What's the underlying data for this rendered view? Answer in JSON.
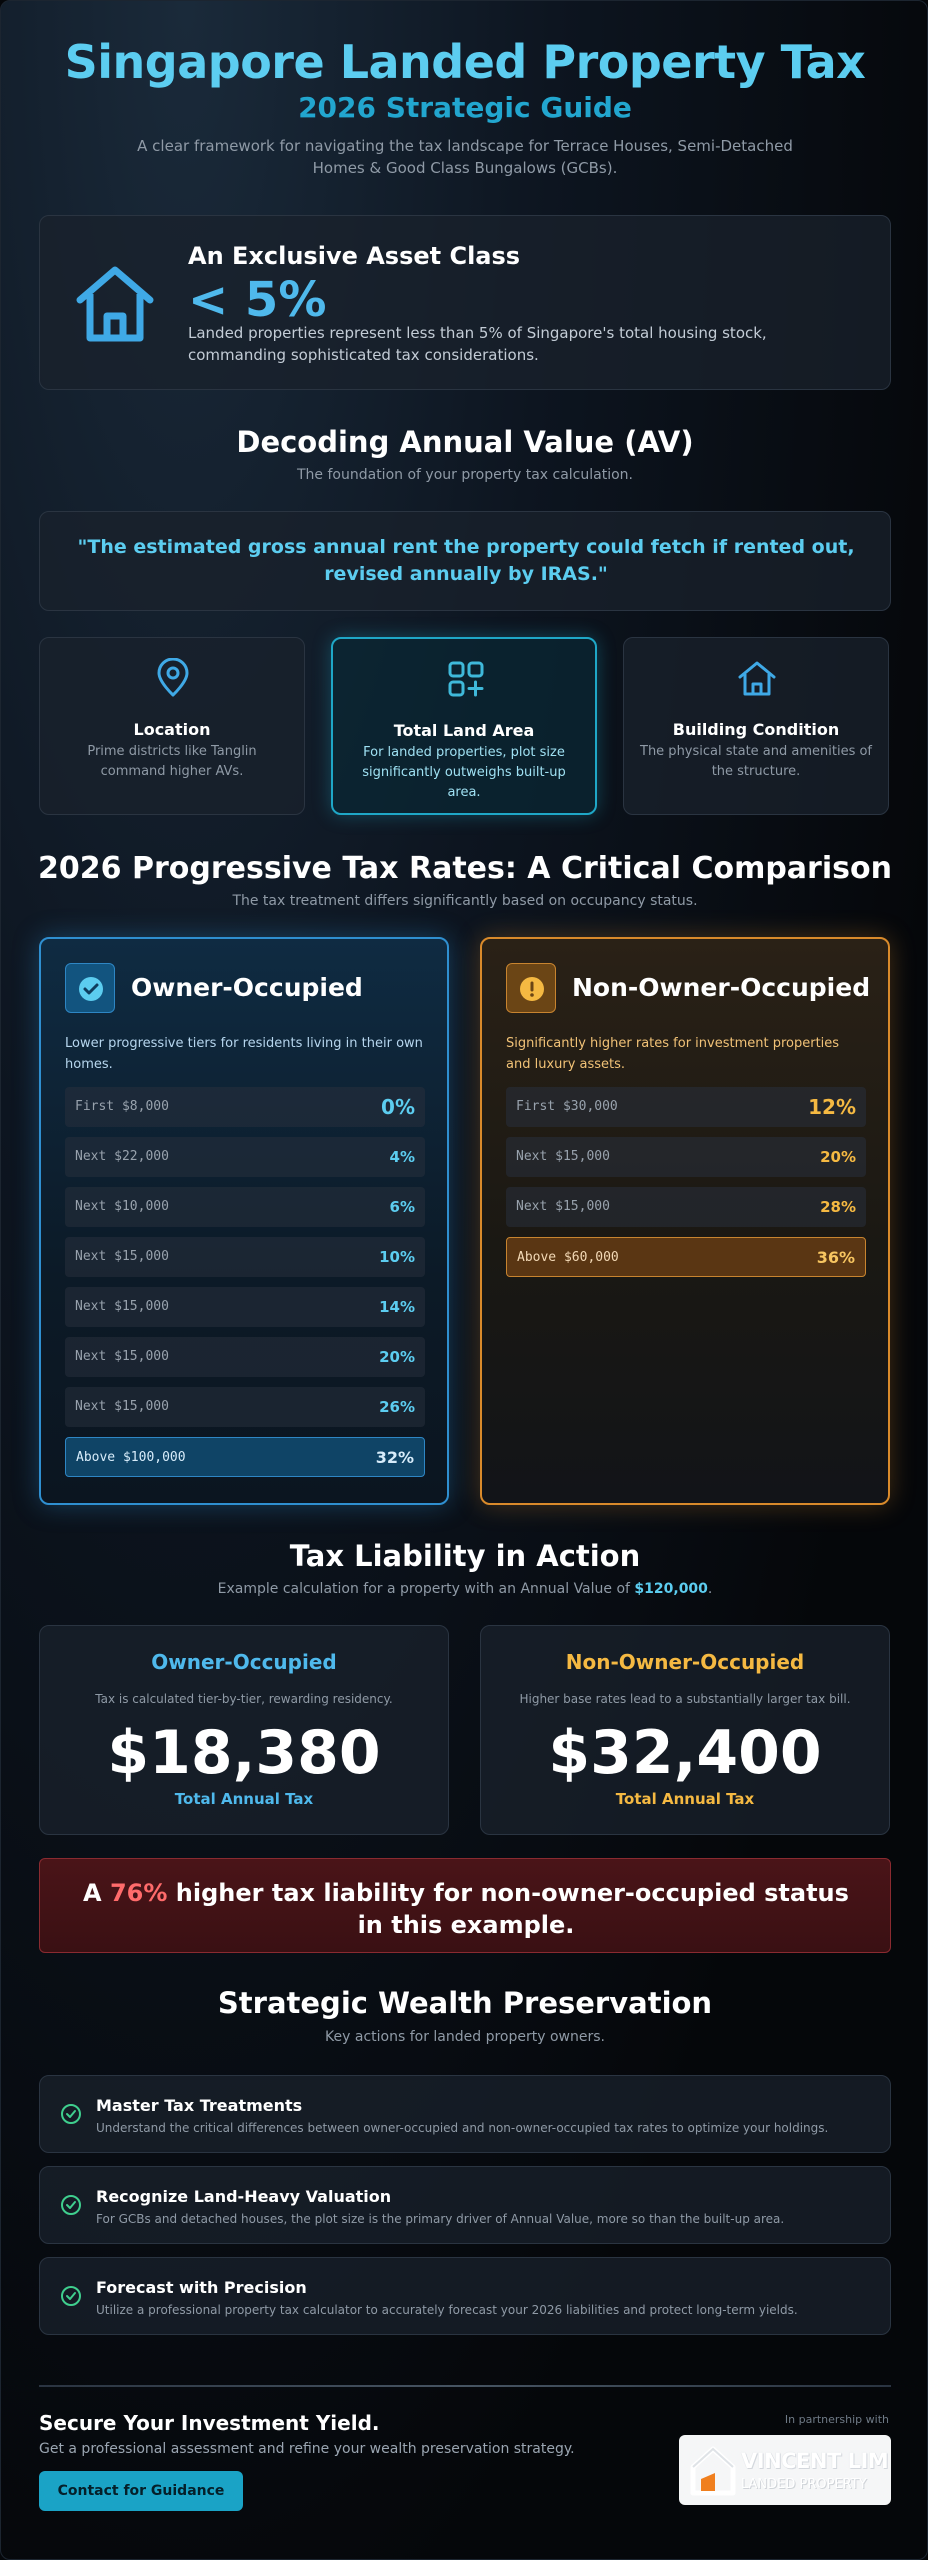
{
  "header": {
    "title": "Singapore Landed Property Tax",
    "subtitle": "2026 Strategic Guide",
    "intro": "A clear framework for navigating the tax landscape for Terrace Houses, Semi-Detached Homes & Good Class Bungalows (GCBs)."
  },
  "asset": {
    "heading": "An Exclusive Asset Class",
    "stat": "< 5%",
    "description": "Landed properties represent less than 5% of Singapore's total housing stock, commanding sophisticated tax considerations.",
    "icon": "house-icon"
  },
  "av": {
    "title": "Decoding Annual Value (AV)",
    "subtitle": "The foundation of your property tax calculation.",
    "quote": "\"The estimated gross annual rent the property could fetch if rented out, revised annually by IRAS.\"",
    "factors": [
      {
        "title": "Location",
        "desc": "Prime districts like Tanglin command higher AVs.",
        "icon": "map-pin-icon"
      },
      {
        "title": "Total Land Area",
        "desc": "For landed properties, plot size significantly outweighs built-up area.",
        "icon": "grid-plus-icon"
      },
      {
        "title": "Building Condition",
        "desc": "The physical state and amenities of the structure.",
        "icon": "house-icon"
      }
    ]
  },
  "rates": {
    "title": "2026 Progressive Tax Rates: A Critical Comparison",
    "subtitle": "The tax treatment differs significantly based on occupancy status.",
    "owner": {
      "title": "Owner-Occupied",
      "desc": "Lower progressive tiers for residents living in their own homes.",
      "rows": [
        {
          "label": "First $8,000",
          "value": "0%"
        },
        {
          "label": "Next $22,000",
          "value": "4%"
        },
        {
          "label": "Next $10,000",
          "value": "6%"
        },
        {
          "label": "Next $15,000",
          "value": "10%"
        },
        {
          "label": "Next $15,000",
          "value": "14%"
        },
        {
          "label": "Next $15,000",
          "value": "20%"
        },
        {
          "label": "Next $15,000",
          "value": "26%"
        },
        {
          "label": "Above $100,000",
          "value": "32%"
        }
      ]
    },
    "non_owner": {
      "title": "Non-Owner-Occupied",
      "desc": "Significantly higher rates for investment properties and luxury assets.",
      "rows": [
        {
          "label": "First $30,000",
          "value": "12%"
        },
        {
          "label": "Next $15,000",
          "value": "20%"
        },
        {
          "label": "Next $15,000",
          "value": "28%"
        },
        {
          "label": "Above $60,000",
          "value": "36%"
        }
      ]
    }
  },
  "liability": {
    "title": "Tax Liability in Action",
    "subtitle_prefix": "Example calculation for a property with an Annual Value of ",
    "subtitle_value": "$120,000",
    "subtitle_suffix": ".",
    "owner": {
      "title": "Owner-Occupied",
      "desc": "Tax is calculated tier-by-tier, rewarding residency.",
      "amount": "$18,380",
      "label": "Total Annual Tax"
    },
    "non_owner": {
      "title": "Non-Owner-Occupied",
      "desc": "Higher base rates lead to a substantially larger tax bill.",
      "amount": "$32,400",
      "label": "Total Annual Tax"
    },
    "warning_prefix": "A ",
    "warning_pct": "76%",
    "warning_suffix": " higher tax liability for non-owner-occupied status in this example."
  },
  "strategy": {
    "title": "Strategic Wealth Preservation",
    "subtitle": "Key actions for landed property owners.",
    "items": [
      {
        "title": "Master Tax Treatments",
        "desc": "Understand the critical differences between owner-occupied and non-owner-occupied tax rates to optimize your holdings."
      },
      {
        "title": "Recognize Land-Heavy Valuation",
        "desc": "For GCBs and detached houses, the plot size is the primary driver of Annual Value, more so than the built-up area."
      },
      {
        "title": "Forecast with Precision",
        "desc": "Utilize a professional property tax calculator to accurately forecast your 2026 liabilities and protect long-term yields."
      }
    ]
  },
  "footer": {
    "title": "Secure Your Investment Yield.",
    "subtitle": "Get a professional assessment and refine your wealth preservation strategy.",
    "cta": "Contact for Guidance",
    "partner_label": "In partnership with",
    "logo_name": "VINCENT LIM",
    "logo_tag": "LANDED PROPERTY"
  },
  "colors": {
    "accent_cyan": "#5ccdf0",
    "owner_blue": "#4fb9ec",
    "non_owner_amber": "#f5b942",
    "warning_red": "#ff6b6b",
    "check_green": "#3fcf8e"
  }
}
